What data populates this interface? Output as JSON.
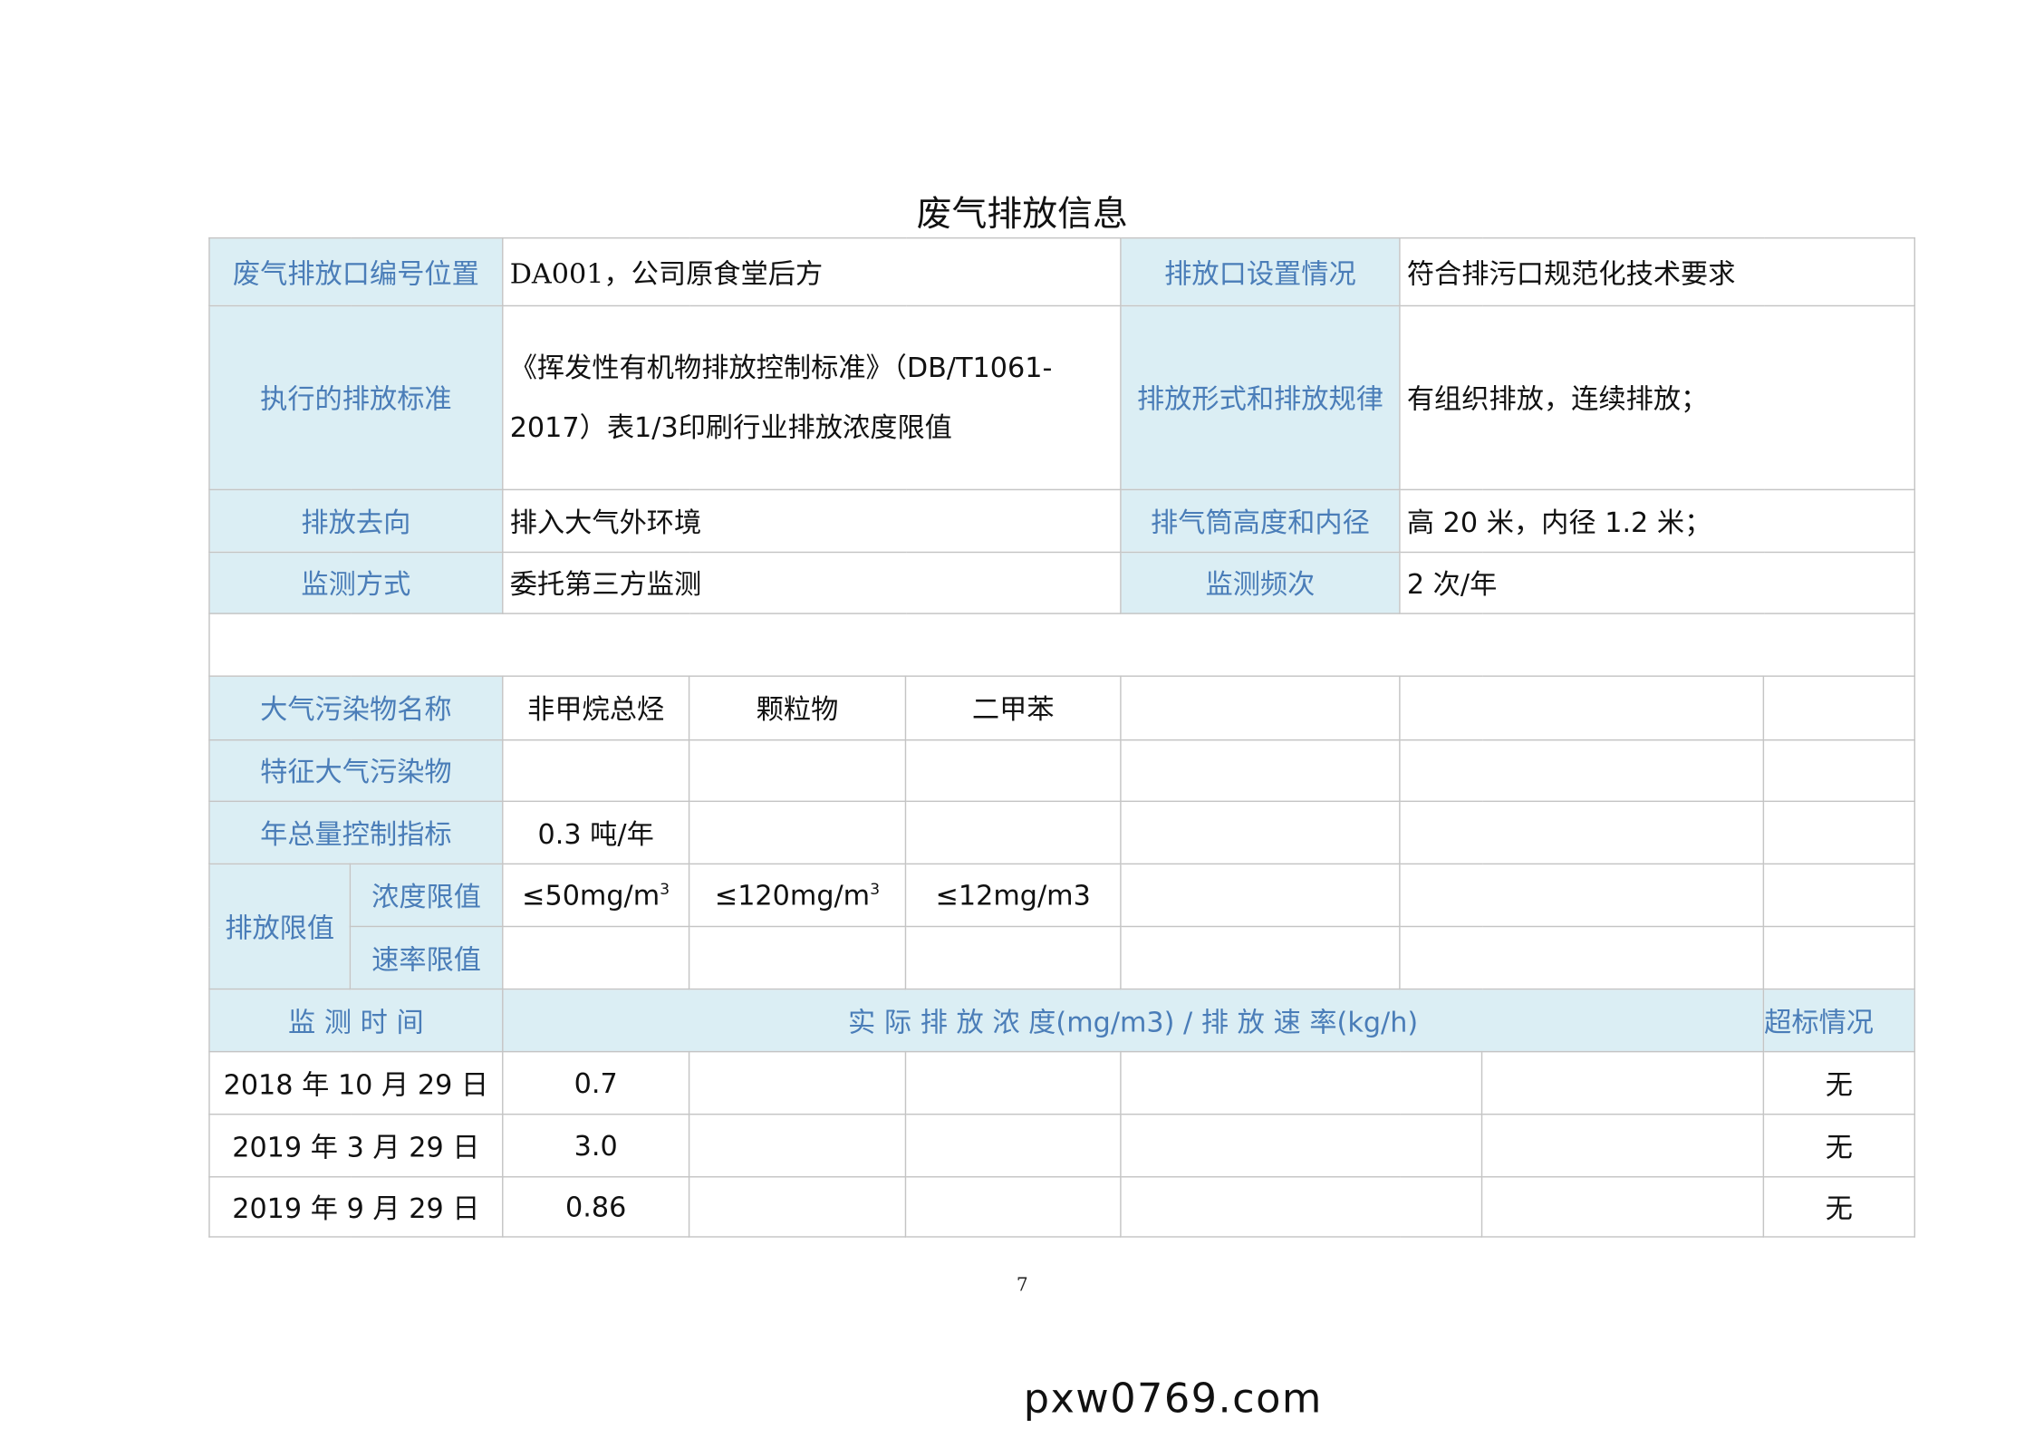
{
  "title": "废气排放信息",
  "info": {
    "outlet_label": "废气排放口编号位置",
    "outlet_value": "DA001，公司原食堂后方",
    "setup_label": "排放口设置情况",
    "setup_value": "符合排污口规范化技术要求",
    "standard_label": "执行的排放标准",
    "standard_value": "《挥发性有机物排放控制标准》（DB/T1061-2017）表1/3印刷行业排放浓度限值",
    "form_label": "排放形式和排放规律",
    "form_value": "有组织排放，连续排放；",
    "direction_label": "排放去向",
    "direction_value": "排入大气外环境",
    "stack_label": "排气筒高度和内径",
    "stack_value": "高 20 米，内径 1.2 米；",
    "method_label": "监测方式",
    "method_value": "委托第三方监测",
    "freq_label": "监测频次",
    "freq_value": "2 次/年"
  },
  "pollutants": {
    "name_label": "大气污染物名称",
    "names": [
      "非甲烷总烃",
      "颗粒物",
      "二甲苯"
    ],
    "feature_label": "特征大气污染物",
    "annual_label": "年总量控制指标",
    "annual": [
      "0.3 吨/年"
    ],
    "limit_label": "排放限值",
    "conc_label": "浓度限值",
    "conc_limits": [
      "≤50mg/m",
      "≤120mg/m",
      "≤12mg/m3"
    ],
    "conc_sup": "3",
    "rate_label": "速率限值"
  },
  "monitoring": {
    "time_label": "监 测 时 间",
    "actual_label": "实 际 排 放 浓 度(mg/m3) / 排 放 速 率(kg/h)",
    "exceed_label": "超标情况",
    "rows": [
      {
        "date": "2018 年 10 月 29 日",
        "value": "0.7",
        "exceed": "无"
      },
      {
        "date": "2019 年 3 月 29 日",
        "value": "3.0",
        "exceed": "无"
      },
      {
        "date": "2019 年 9 月 29 日",
        "value": "0.86",
        "exceed": "无"
      }
    ]
  },
  "page_number": "7",
  "watermark": "pxw0769.com",
  "colors": {
    "header_bg": "#dbeef4",
    "header_text": "#4a7db8",
    "border": "#c4c4c4"
  }
}
